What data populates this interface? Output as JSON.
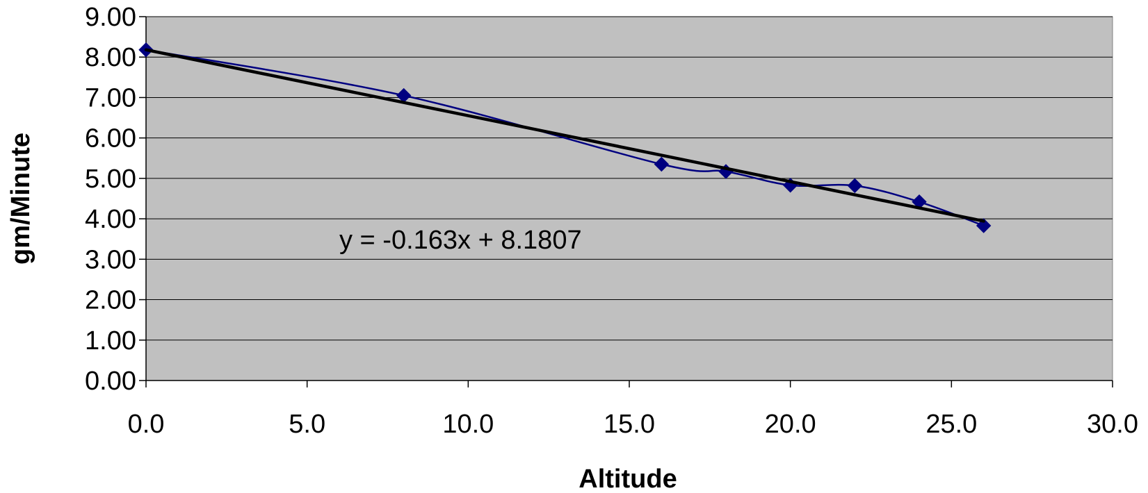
{
  "chart_data": {
    "type": "scatter",
    "xlabel": "Altitude",
    "ylabel": "gm/Minute",
    "xlim": [
      0,
      30
    ],
    "ylim": [
      0,
      9
    ],
    "x_ticks": [
      "0.0",
      "5.0",
      "10.0",
      "15.0",
      "20.0",
      "25.0",
      "30.0"
    ],
    "y_ticks": [
      "0.00",
      "1.00",
      "2.00",
      "3.00",
      "4.00",
      "5.00",
      "6.00",
      "7.00",
      "8.00",
      "9.00"
    ],
    "grid": "horizontal",
    "plot_background": "#c0c0c0",
    "series": [
      {
        "x": [
          0,
          8,
          16,
          18,
          20,
          22,
          24,
          26
        ],
        "y": [
          8.18,
          7.05,
          5.35,
          5.17,
          4.83,
          4.82,
          4.42,
          3.83
        ],
        "color": "#000080",
        "marker": "diamond",
        "line": "smooth"
      }
    ],
    "trendline": {
      "type": "linear",
      "slope": -0.163,
      "intercept": 8.1807,
      "x_range": [
        0,
        26
      ],
      "color": "#000000",
      "equation_label": "y = -0.163x + 8.1807"
    }
  }
}
